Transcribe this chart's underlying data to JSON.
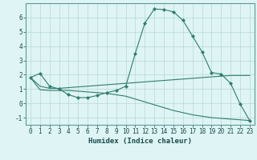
{
  "xlabel": "Humidex (Indice chaleur)",
  "x": [
    0,
    1,
    2,
    3,
    4,
    5,
    6,
    7,
    8,
    9,
    10,
    11,
    12,
    13,
    14,
    15,
    16,
    17,
    18,
    19,
    20,
    21,
    22,
    23
  ],
  "main_line": [
    1.8,
    2.1,
    1.2,
    1.0,
    0.6,
    0.4,
    0.4,
    0.55,
    0.75,
    0.9,
    1.2,
    3.5,
    5.6,
    6.6,
    6.55,
    6.4,
    5.8,
    4.7,
    3.6,
    2.15,
    2.05,
    1.4,
    -0.05,
    -1.2
  ],
  "upper_line": [
    1.8,
    1.2,
    1.05,
    1.05,
    1.1,
    1.15,
    1.2,
    1.25,
    1.3,
    1.35,
    1.4,
    1.45,
    1.5,
    1.55,
    1.6,
    1.65,
    1.7,
    1.75,
    1.8,
    1.85,
    1.9,
    1.95,
    1.95,
    1.95
  ],
  "lower_line": [
    1.8,
    0.95,
    0.9,
    0.9,
    0.9,
    0.85,
    0.8,
    0.75,
    0.7,
    0.6,
    0.5,
    0.3,
    0.1,
    -0.1,
    -0.3,
    -0.5,
    -0.65,
    -0.8,
    -0.9,
    -1.0,
    -1.05,
    -1.1,
    -1.15,
    -1.2
  ],
  "line_color": "#2e7d6e",
  "bg_color": "#dff4f4",
  "grid_color": "#b8d8d8",
  "ylim": [
    -1.5,
    7.0
  ],
  "xlim": [
    -0.5,
    23.5
  ],
  "yticks": [
    -1,
    0,
    1,
    2,
    3,
    4,
    5,
    6
  ],
  "xticks": [
    0,
    1,
    2,
    3,
    4,
    5,
    6,
    7,
    8,
    9,
    10,
    11,
    12,
    13,
    14,
    15,
    16,
    17,
    18,
    19,
    20,
    21,
    22,
    23
  ]
}
